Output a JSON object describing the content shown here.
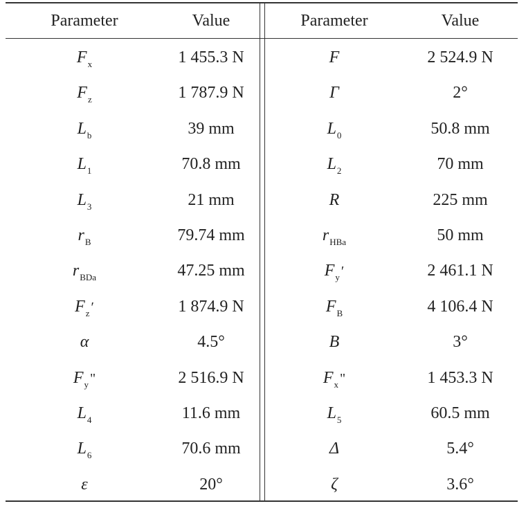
{
  "table": {
    "header": [
      "Parameter",
      "Value",
      "Parameter",
      "Value"
    ],
    "rows": [
      {
        "left": {
          "symbol": "F",
          "sub": "x",
          "value": "1 455.3 N"
        },
        "right": {
          "symbol": "F",
          "value": "2 524.9 N"
        }
      },
      {
        "left": {
          "symbol": "F",
          "sub": "z",
          "value": "1 787.9 N"
        },
        "right": {
          "symbol": "Γ",
          "value": "2°"
        }
      },
      {
        "left": {
          "symbol": "L",
          "sub": "b",
          "value": "39 mm"
        },
        "right": {
          "symbol": "L",
          "sub": "0",
          "value": "50.8 mm"
        }
      },
      {
        "left": {
          "symbol": "L",
          "sub": "1",
          "value": "70.8 mm"
        },
        "right": {
          "symbol": "L",
          "sub": "2",
          "value": "70 mm"
        }
      },
      {
        "left": {
          "symbol": "L",
          "sub": "3",
          "value": "21 mm"
        },
        "right": {
          "symbol": "R",
          "value": "225 mm"
        }
      },
      {
        "left": {
          "symbol": "r",
          "sub": "B",
          "value": "79.74 mm"
        },
        "right": {
          "symbol": "r",
          "sub": "HBa",
          "value": "50 mm"
        }
      },
      {
        "left": {
          "symbol": "r",
          "sub": "BDa",
          "value": "47.25 mm"
        },
        "right": {
          "symbol": "F",
          "sub": "y",
          "mark": "′",
          "value": "2 461.1 N"
        }
      },
      {
        "left": {
          "symbol": "F",
          "sub": "z",
          "mark": "′",
          "value": "1 874.9 N"
        },
        "right": {
          "symbol": "F",
          "sub": "B",
          "value": "4 106.4 N"
        }
      },
      {
        "left": {
          "symbol": "α",
          "value": "4.5°"
        },
        "right": {
          "symbol": "B",
          "value": "3°"
        }
      },
      {
        "left": {
          "symbol": "F",
          "sub": "y",
          "mark": "\"",
          "value": "2 516.9 N"
        },
        "right": {
          "symbol": "F",
          "sub": "x",
          "mark": "\"",
          "value": "1 453.3 N"
        }
      },
      {
        "left": {
          "symbol": "L",
          "sub": "4",
          "value": "11.6 mm"
        },
        "right": {
          "symbol": "L",
          "sub": "5",
          "value": "60.5 mm"
        }
      },
      {
        "left": {
          "symbol": "L",
          "sub": "6",
          "value": "70.6 mm"
        },
        "right": {
          "symbol": "Δ",
          "value": "5.4°"
        }
      },
      {
        "left": {
          "symbol": "ε",
          "value": "20°"
        },
        "right": {
          "symbol": "ζ",
          "value": "3.6°"
        }
      }
    ]
  }
}
